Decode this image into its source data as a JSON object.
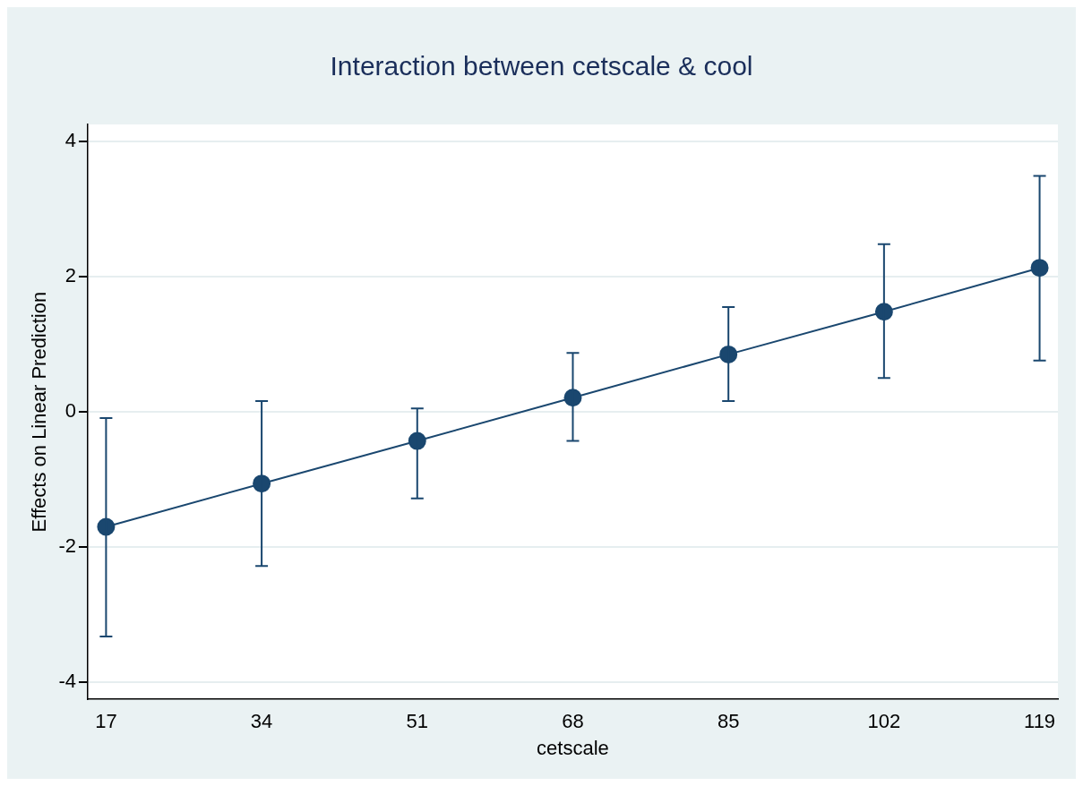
{
  "chart_data": {
    "type": "line",
    "title": "Interaction between cetscale & cool",
    "xlabel": "cetscale",
    "ylabel": "Effects on Linear Prediction",
    "x": [
      17,
      34,
      51,
      68,
      85,
      102,
      119
    ],
    "series": [
      {
        "color": "#1a476f",
        "values": [
          -1.7,
          -1.06,
          -0.43,
          0.21,
          0.85,
          1.48,
          2.13
        ],
        "errors": [
          [
            -3.32,
            -0.09
          ],
          [
            -2.28,
            0.16
          ],
          [
            -1.28,
            0.05
          ],
          [
            -0.43,
            0.87
          ],
          [
            0.16,
            1.55
          ],
          [
            0.5,
            2.48
          ],
          [
            0.76,
            3.49
          ]
        ]
      }
    ],
    "xlim": [
      15,
      121
    ],
    "xticks": [
      17,
      34,
      51,
      68,
      85,
      102,
      119
    ],
    "ylim": [
      -4.25,
      4.25
    ],
    "yticks": [
      -4,
      -2,
      0,
      2,
      4
    ],
    "grid": "y",
    "legend": false,
    "marker": "circle",
    "line_style": "solid"
  }
}
